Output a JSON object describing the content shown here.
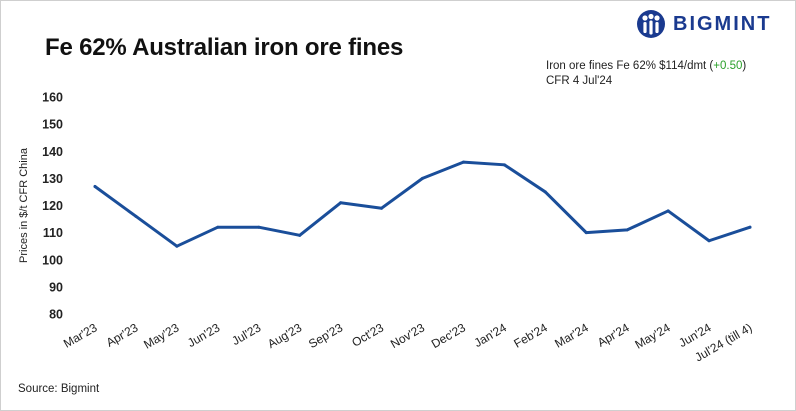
{
  "header": {
    "title": "Fe 62% Australian iron ore fines",
    "brand": "BIGMINT"
  },
  "info": {
    "line1_prefix": "Iron ore fines Fe 62% $114/dmt (",
    "change": "+0.50",
    "line1_suffix": ")",
    "line2": "CFR 4 Jul'24",
    "change_color": "#2aa02a"
  },
  "footer": {
    "source": "Source: Bigmint"
  },
  "colors": {
    "line": "#1a4e9a",
    "brand": "#1a3a8f"
  },
  "chart_data": {
    "type": "line",
    "title": "Fe 62% Australian iron ore fines",
    "ylabel": "Prices in $/t CFR China",
    "xlabel": "",
    "ylim": [
      80,
      160
    ],
    "yticks": [
      80,
      90,
      100,
      110,
      120,
      130,
      140,
      150,
      160
    ],
    "grid": false,
    "legend": "none",
    "categories": [
      "Mar'23",
      "Apr'23",
      "May'23",
      "Jun'23",
      "Jul'23",
      "Aug'23",
      "Sep'23",
      "Oct'23",
      "Nov'23",
      "Dec'23",
      "Jan'24",
      "Feb'24",
      "Mar'24",
      "Apr'24",
      "May'24",
      "Jun'24",
      "Jul'24 (till 4)"
    ],
    "series": [
      {
        "values": [
          127,
          116,
          105,
          112,
          112,
          109,
          121,
          119,
          130,
          136,
          135,
          125,
          110,
          111,
          118,
          107,
          112
        ]
      }
    ]
  }
}
